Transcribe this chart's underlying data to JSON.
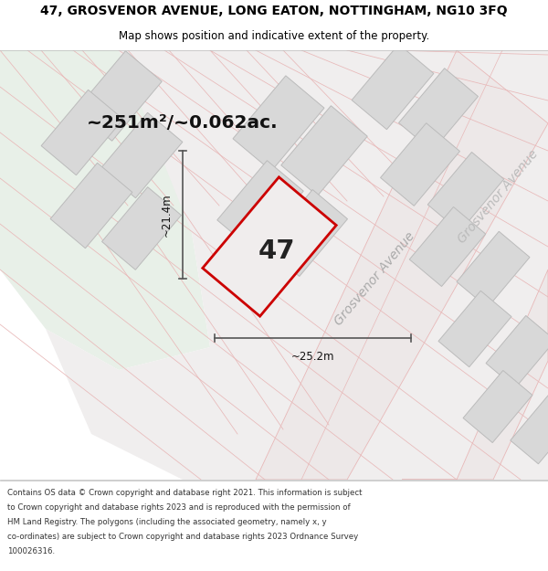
{
  "title_line1": "47, GROSVENOR AVENUE, LONG EATON, NOTTINGHAM, NG10 3FQ",
  "title_line2": "Map shows position and indicative extent of the property.",
  "footer_text": "Contains OS data © Crown copyright and database right 2021. This information is subject to Crown copyright and database rights 2023 and is reproduced with the permission of HM Land Registry. The polygons (including the associated geometry, namely x, y co-ordinates) are subject to Crown copyright and database rights 2023 Ordnance Survey 100026316.",
  "area_label": "~251m²/~0.062ac.",
  "property_number": "47",
  "dim_width": "~25.2m",
  "dim_height": "~21.4m",
  "road_label_center": "Grosvenor Avenue",
  "road_label_right": "Grosvenor Avenue",
  "bg_map_color": "#f5f5f0",
  "bg_light_green": "#e8f0e8",
  "block_color": "#d8d8d8",
  "block_outline": "#bbbbbb",
  "road_line_color": "#e8b8b8",
  "road_bg_color": "#ede8e8",
  "property_fill": "#f0eded",
  "property_outline": "#cc0000",
  "dim_line_color": "#555555",
  "title_color": "#000000",
  "footer_color": "#333333",
  "road_label_color": "#aaaaaa",
  "title_fontsize": 10,
  "subtitle_fontsize": 8.5,
  "footer_fontsize": 6.2
}
